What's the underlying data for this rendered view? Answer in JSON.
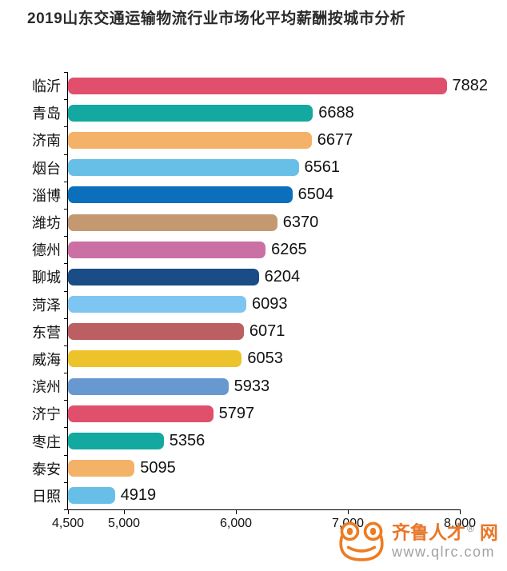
{
  "title": "2019山东交通运输物流行业市场化平均薪酬按城市分析",
  "chart_data": {
    "type": "bar",
    "orientation": "horizontal",
    "title": "2019山东交通运输物流行业市场化平均薪酬按城市分析",
    "categories": [
      "临沂",
      "青岛",
      "济南",
      "烟台",
      "淄博",
      "潍坊",
      "德州",
      "聊城",
      "菏泽",
      "东营",
      "威海",
      "滨州",
      "济宁",
      "枣庄",
      "泰安",
      "日照"
    ],
    "values": [
      7882,
      6688,
      6677,
      6561,
      6504,
      6370,
      6265,
      6204,
      6093,
      6071,
      6053,
      5933,
      5797,
      5356,
      5095,
      4919
    ],
    "bar_colors": [
      "#e04f6c",
      "#13a8a0",
      "#f4b168",
      "#67bfe8",
      "#0b6fbc",
      "#c49972",
      "#ca70a4",
      "#1a4c86",
      "#7ec5f2",
      "#bc5f63",
      "#edc32c",
      "#6898d0",
      "#e04f6c",
      "#13a8a0",
      "#f4b168",
      "#67bfe8"
    ],
    "xlim": [
      4500,
      8000
    ],
    "x_ticks": [
      4500,
      5000,
      6000,
      7000,
      8000
    ],
    "x_tick_labels": [
      "4,500",
      "5,000",
      "6,000",
      "7,000",
      "8,000"
    ],
    "grid": false,
    "legend_position": "none",
    "value_labels": true,
    "axis_color": "#000000",
    "text_color": "#111111"
  },
  "watermark": {
    "brand": "齐鲁人才",
    "registered": "®",
    "suffix": "网",
    "url": "www.qlrc.com",
    "brand_color": "#e8772a",
    "url_color": "#a2a2a6",
    "reg_color": "#8a8a8a",
    "icon_color": "#ef7b20",
    "icon": "frog-icon"
  }
}
